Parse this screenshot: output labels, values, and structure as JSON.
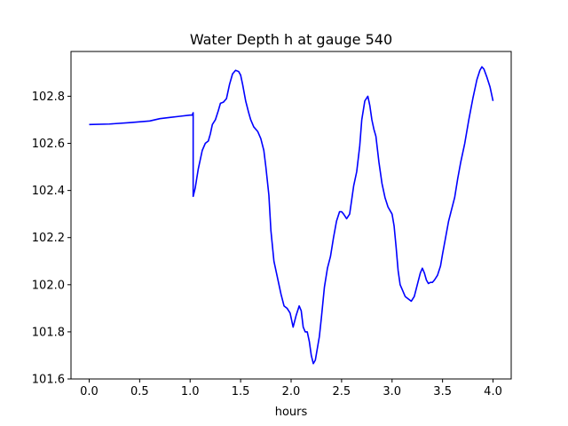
{
  "chart_data": {
    "type": "line",
    "title": "Water Depth h at gauge 540",
    "xlabel": "hours",
    "ylabel": "",
    "xlim": [
      -0.18,
      4.18
    ],
    "ylim": [
      101.6,
      102.99
    ],
    "xticks": [
      0.0,
      0.5,
      1.0,
      1.5,
      2.0,
      2.5,
      3.0,
      3.5,
      4.0
    ],
    "xtick_labels": [
      "0.0",
      "0.5",
      "1.0",
      "1.5",
      "2.0",
      "2.5",
      "3.0",
      "3.5",
      "4.0"
    ],
    "yticks": [
      101.6,
      101.8,
      102.0,
      102.2,
      102.4,
      102.6,
      102.8
    ],
    "ytick_labels": [
      "101.6",
      "101.8",
      "102.0",
      "102.2",
      "102.4",
      "102.6",
      "102.8"
    ],
    "grid": false,
    "legend": "none",
    "series": [
      {
        "color": "#0000ff",
        "x": [
          0.0,
          0.2,
          0.4,
          0.6,
          0.7,
          0.8,
          0.9,
          1.0,
          1.02,
          1.03,
          1.03,
          1.05,
          1.08,
          1.12,
          1.15,
          1.18,
          1.2,
          1.22,
          1.25,
          1.28,
          1.3,
          1.33,
          1.36,
          1.39,
          1.42,
          1.45,
          1.48,
          1.5,
          1.52,
          1.55,
          1.58,
          1.6,
          1.63,
          1.67,
          1.7,
          1.73,
          1.75,
          1.78,
          1.8,
          1.83,
          1.86,
          1.9,
          1.93,
          1.96,
          1.99,
          2.02,
          2.05,
          2.08,
          2.1,
          2.12,
          2.14,
          2.16,
          2.18,
          2.2,
          2.22,
          2.24,
          2.26,
          2.28,
          2.3,
          2.33,
          2.36,
          2.39,
          2.42,
          2.45,
          2.48,
          2.5,
          2.52,
          2.55,
          2.58,
          2.6,
          2.62,
          2.65,
          2.68,
          2.7,
          2.73,
          2.76,
          2.78,
          2.8,
          2.82,
          2.84,
          2.87,
          2.9,
          2.93,
          2.96,
          3.0,
          3.02,
          3.04,
          3.06,
          3.08,
          3.1,
          3.13,
          3.16,
          3.19,
          3.22,
          3.25,
          3.28,
          3.3,
          3.32,
          3.34,
          3.36,
          3.38,
          3.4,
          3.42,
          3.45,
          3.48,
          3.5,
          3.53,
          3.56,
          3.59,
          3.62,
          3.65,
          3.68,
          3.72,
          3.76,
          3.8,
          3.84,
          3.87,
          3.89,
          3.91,
          3.94,
          3.97,
          4.0
        ],
        "y": [
          102.68,
          102.682,
          102.688,
          102.695,
          102.705,
          102.71,
          102.715,
          102.72,
          102.72,
          102.73,
          102.375,
          102.41,
          102.49,
          102.57,
          102.6,
          102.61,
          102.64,
          102.68,
          102.7,
          102.74,
          102.77,
          102.775,
          102.79,
          102.85,
          102.895,
          102.91,
          102.905,
          102.89,
          102.85,
          102.78,
          102.73,
          102.7,
          102.67,
          102.65,
          102.62,
          102.57,
          102.5,
          102.38,
          102.23,
          102.1,
          102.04,
          101.96,
          101.91,
          101.9,
          101.88,
          101.82,
          101.87,
          101.91,
          101.89,
          101.82,
          101.8,
          101.8,
          101.76,
          101.7,
          101.665,
          101.68,
          101.73,
          101.78,
          101.86,
          101.99,
          102.07,
          102.12,
          102.2,
          102.27,
          102.31,
          102.31,
          102.3,
          102.28,
          102.3,
          102.36,
          102.42,
          102.48,
          102.59,
          102.7,
          102.78,
          102.8,
          102.76,
          102.7,
          102.66,
          102.63,
          102.52,
          102.43,
          102.37,
          102.33,
          102.3,
          102.25,
          102.16,
          102.06,
          102.0,
          101.98,
          101.95,
          101.94,
          101.93,
          101.95,
          102.0,
          102.05,
          102.07,
          102.05,
          102.02,
          102.005,
          102.01,
          102.01,
          102.02,
          102.04,
          102.08,
          102.13,
          102.2,
          102.27,
          102.32,
          102.37,
          102.45,
          102.52,
          102.6,
          102.7,
          102.79,
          102.87,
          102.91,
          102.925,
          102.915,
          102.88,
          102.84,
          102.78
        ]
      }
    ]
  }
}
